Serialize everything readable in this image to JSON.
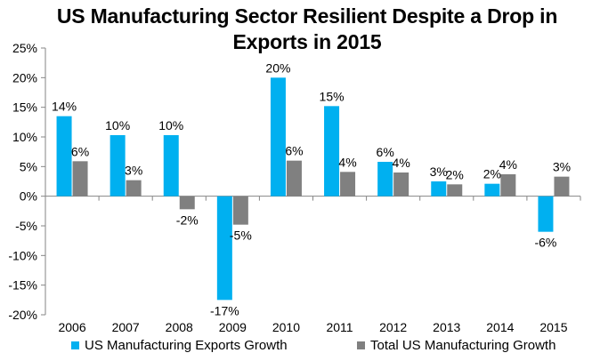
{
  "chart_data": {
    "type": "bar",
    "title": "US Manufacturing Sector Resilient Despite a Drop in Exports in 2015",
    "categories": [
      "2006",
      "2007",
      "2008",
      "2009",
      "2010",
      "2011",
      "2012",
      "2013",
      "2014",
      "2015"
    ],
    "series": [
      {
        "name": "US Manufacturing Exports Growth",
        "color": "#00B0F0",
        "values": [
          13.5,
          10.3,
          10.3,
          -17.5,
          20.0,
          15.2,
          5.8,
          2.5,
          2.1,
          -6.0
        ],
        "labels": [
          "14%",
          "10%",
          "10%",
          "-17%",
          "20%",
          "15%",
          "6%",
          "3%",
          "2%",
          "-6%"
        ]
      },
      {
        "name": "Total US Manufacturing Growth",
        "color": "#808080",
        "values": [
          5.9,
          2.7,
          -2.2,
          -4.8,
          6.0,
          4.1,
          4.0,
          2.0,
          3.7,
          3.3
        ],
        "labels": [
          "6%",
          "3%",
          "-2%",
          "-5%",
          "6%",
          "4%",
          "4%",
          "2%",
          "4%",
          "3%"
        ]
      }
    ],
    "yticks": [
      "25%",
      "20%",
      "15%",
      "10%",
      "5%",
      "0%",
      "-5%",
      "-10%",
      "-15%",
      "-20%"
    ],
    "ylim": [
      -20,
      25
    ],
    "xlabel": "",
    "ylabel": "",
    "grid": false,
    "legend_position": "bottom"
  }
}
